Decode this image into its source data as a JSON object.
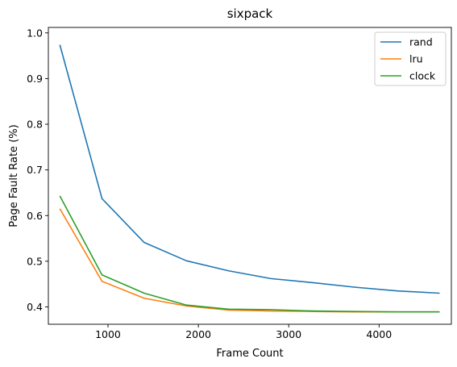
{
  "chart_data": {
    "type": "line",
    "title": "sixpack",
    "xlabel": "Frame Count",
    "ylabel": "Page Fault Rate (%)",
    "xlim": [
      340,
      4800
    ],
    "ylim": [
      0.362,
      1.012
    ],
    "xticks": [
      1000,
      2000,
      3000,
      4000
    ],
    "yticks": [
      0.4,
      0.5,
      0.6,
      0.7,
      0.8,
      0.9,
      1.0
    ],
    "xtick_labels": [
      "1000",
      "2000",
      "3000",
      "4000"
    ],
    "ytick_labels": [
      "0.4",
      "0.5",
      "0.6",
      "0.7",
      "0.8",
      "0.9",
      "1.0"
    ],
    "grid": false,
    "legend_position": "top-right",
    "x": [
      467,
      934,
      1401,
      1868,
      2335,
      2802,
      3269,
      3736,
      4203,
      4670
    ],
    "series": [
      {
        "name": "rand",
        "color": "#1f77b4",
        "values": [
          0.974,
          0.637,
          0.541,
          0.501,
          0.479,
          0.462,
          0.453,
          0.443,
          0.435,
          0.43
        ]
      },
      {
        "name": "lru",
        "color": "#ff7f0e",
        "values": [
          0.615,
          0.456,
          0.419,
          0.402,
          0.393,
          0.391,
          0.39,
          0.389,
          0.389,
          0.389
        ]
      },
      {
        "name": "clock",
        "color": "#2ca02c",
        "values": [
          0.643,
          0.47,
          0.43,
          0.404,
          0.395,
          0.394,
          0.391,
          0.39,
          0.389,
          0.389
        ]
      }
    ]
  }
}
